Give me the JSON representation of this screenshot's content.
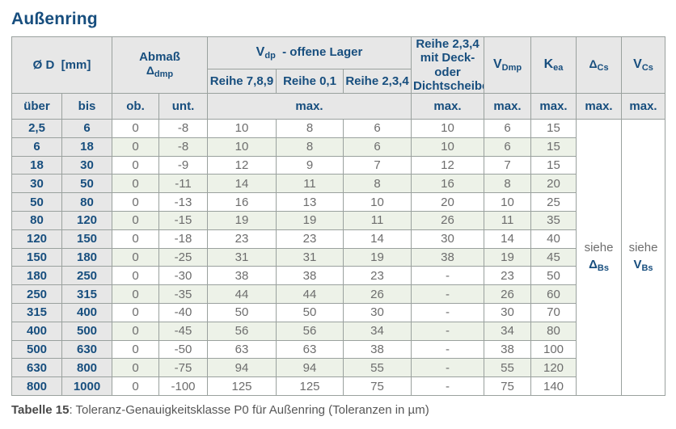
{
  "title": "Außenring",
  "colors": {
    "navy": "#174e7e",
    "header_bg": "#e7e7e7",
    "stripe_green": "#edf2e8",
    "dim_col_bg": "#e7e7e7",
    "data_text": "#6d6d6d",
    "border": "#9aa19e"
  },
  "header": {
    "d_main": "Ø D",
    "d_unit": "[mm]",
    "abmass_line1": "Abmaß",
    "abmass_sym": "Δ",
    "abmass_sub": "dmp",
    "vdp_sym": "V",
    "vdp_sub": "dp",
    "vdp_rest": "-  offene Lager",
    "reihe789": "Reihe 7,8,9",
    "reihe01": "Reihe 0,1",
    "reihe234": "Reihe 2,3,4",
    "deck_line1": "Reihe 2,3,4",
    "deck_line2": "mit Deck- oder",
    "deck_line3": "Dichtscheiben",
    "vdmp_sym": "V",
    "vdmp_sub": "Dmp",
    "kea_sym": "K",
    "kea_sub": "ea",
    "dcs_sym": "Δ",
    "dcs_sub": "Cs",
    "vcs_sym": "V",
    "vcs_sub": "Cs",
    "ueber": "über",
    "bis": "bis",
    "ob": "ob.",
    "unt": "unt.",
    "max": "max."
  },
  "siehe": {
    "dcs_prefix": "siehe",
    "dcs_sym": "Δ",
    "dcs_sub": "Bs",
    "vcs_prefix": "siehe",
    "vcs_sym": "V",
    "vcs_sub": "Bs"
  },
  "rows": [
    [
      "2,5",
      "6",
      "0",
      "-8",
      "10",
      "8",
      "6",
      "10",
      "6",
      "15"
    ],
    [
      "6",
      "18",
      "0",
      "-8",
      "10",
      "8",
      "6",
      "10",
      "6",
      "15"
    ],
    [
      "18",
      "30",
      "0",
      "-9",
      "12",
      "9",
      "7",
      "12",
      "7",
      "15"
    ],
    [
      "30",
      "50",
      "0",
      "-11",
      "14",
      "11",
      "8",
      "16",
      "8",
      "20"
    ],
    [
      "50",
      "80",
      "0",
      "-13",
      "16",
      "13",
      "10",
      "20",
      "10",
      "25"
    ],
    [
      "80",
      "120",
      "0",
      "-15",
      "19",
      "19",
      "11",
      "26",
      "11",
      "35"
    ],
    [
      "120",
      "150",
      "0",
      "-18",
      "23",
      "23",
      "14",
      "30",
      "14",
      "40"
    ],
    [
      "150",
      "180",
      "0",
      "-25",
      "31",
      "31",
      "19",
      "38",
      "19",
      "45"
    ],
    [
      "180",
      "250",
      "0",
      "-30",
      "38",
      "38",
      "23",
      "-",
      "23",
      "50"
    ],
    [
      "250",
      "315",
      "0",
      "-35",
      "44",
      "44",
      "26",
      "-",
      "26",
      "60"
    ],
    [
      "315",
      "400",
      "0",
      "-40",
      "50",
      "50",
      "30",
      "-",
      "30",
      "70"
    ],
    [
      "400",
      "500",
      "0",
      "-45",
      "56",
      "56",
      "34",
      "-",
      "34",
      "80"
    ],
    [
      "500",
      "630",
      "0",
      "-50",
      "63",
      "63",
      "38",
      "-",
      "38",
      "100"
    ],
    [
      "630",
      "800",
      "0",
      "-75",
      "94",
      "94",
      "55",
      "-",
      "55",
      "120"
    ],
    [
      "800",
      "1000",
      "0",
      "-100",
      "125",
      "125",
      "75",
      "-",
      "75",
      "140"
    ]
  ],
  "caption": {
    "label": "Tabelle 15",
    "text": ": Toleranz-Genauigkeitsklasse P0 für Außenring (Toleranzen in µm)"
  }
}
